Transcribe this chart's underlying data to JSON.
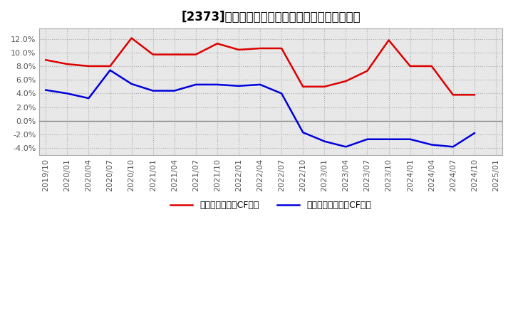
{
  "title": "[2373]　有利子負債キャッシュフロー比率の推移",
  "x_labels": [
    "2019/10",
    "2020/01",
    "2020/04",
    "2020/07",
    "2020/10",
    "2021/01",
    "2021/04",
    "2021/07",
    "2021/10",
    "2022/01",
    "2022/04",
    "2022/07",
    "2022/10",
    "2023/01",
    "2023/04",
    "2023/07",
    "2023/10",
    "2024/01",
    "2024/04",
    "2024/07",
    "2024/10",
    "2025/01"
  ],
  "red_values": [
    0.089,
    0.083,
    0.08,
    0.08,
    0.121,
    0.097,
    0.097,
    0.097,
    0.113,
    0.104,
    0.106,
    0.106,
    0.05,
    0.05,
    0.058,
    0.073,
    0.118,
    0.08,
    0.08,
    0.038,
    0.038,
    null
  ],
  "blue_values": [
    0.045,
    0.04,
    0.033,
    0.074,
    0.054,
    0.044,
    0.044,
    0.053,
    0.053,
    0.051,
    0.053,
    0.04,
    -0.017,
    -0.03,
    -0.038,
    -0.027,
    -0.027,
    -0.027,
    -0.035,
    -0.038,
    -0.018,
    null
  ],
  "legend_red": "有利子負債営業CF比率",
  "legend_blue": "有利子負債フリーCF比率",
  "ylim": [
    -0.05,
    0.135
  ],
  "yticks": [
    -0.04,
    -0.02,
    0.0,
    0.02,
    0.04,
    0.06,
    0.08,
    0.1,
    0.12
  ],
  "bg_color": "#ffffff",
  "plot_bg_color": "#e8e8e8",
  "grid_color": "#aaaaaa",
  "zero_line_color": "#888888",
  "red_color": "#dd0000",
  "blue_color": "#0000dd",
  "title_fontsize": 12,
  "tick_fontsize": 8,
  "legend_fontsize": 9
}
